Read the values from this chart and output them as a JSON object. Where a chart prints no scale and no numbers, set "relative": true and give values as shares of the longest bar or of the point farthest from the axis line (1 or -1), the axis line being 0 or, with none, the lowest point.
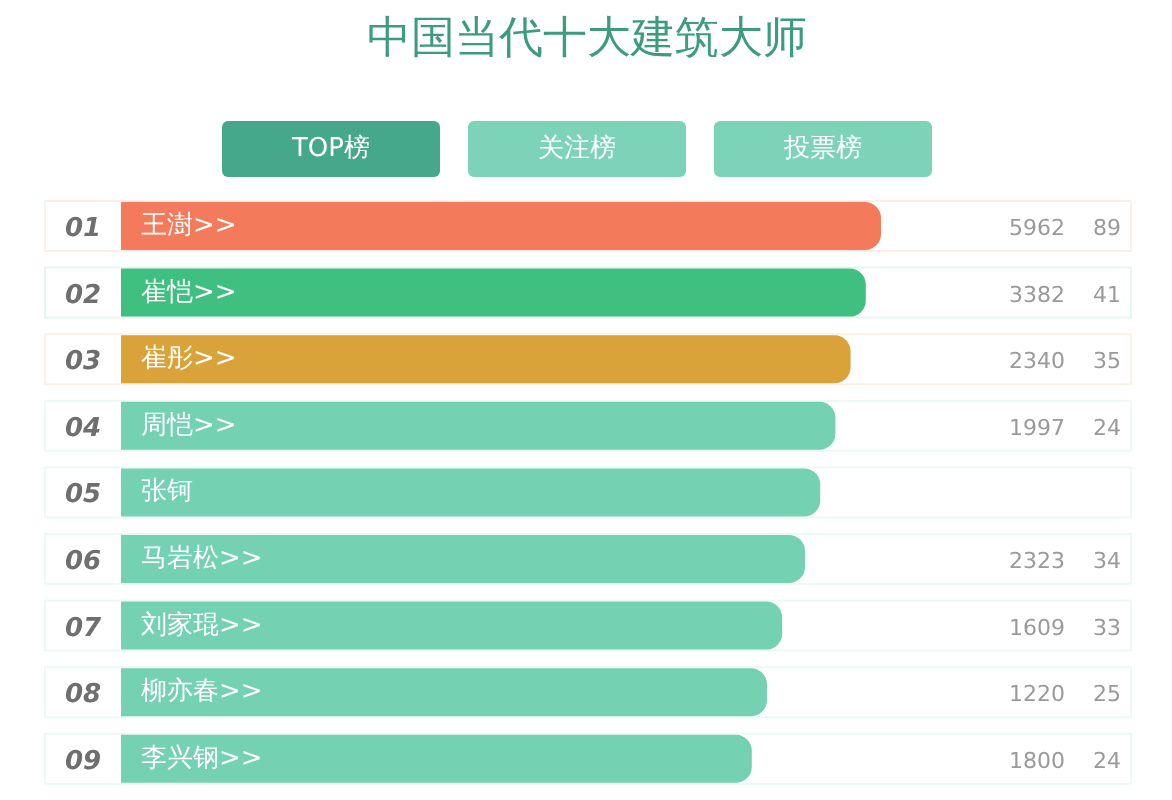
{
  "chart_data": {
    "type": "bar",
    "orientation": "horizontal",
    "relative": true,
    "title": "中国当代十大建筑大师",
    "categories": [
      "王澍>>",
      "崔恺>>",
      "崔彤>>",
      "周恺>>",
      "张钶",
      "马岩松>>",
      "刘家琨>>",
      "柳亦春>>",
      "李兴钢>>"
    ],
    "values": [
      1,
      0.98,
      0.96,
      0.94,
      0.92,
      0.9,
      0.87,
      0.85,
      0.83
    ],
    "colors": [
      "#f47a5c",
      "#3fbf80",
      "#d9a33a",
      "#74d1b1",
      "#74d1b1",
      "#74d1b1",
      "#74d1b1",
      "#74d1b1",
      "#74d1b1"
    ],
    "annotations": [
      "TOP榜",
      "关注榜",
      "投票榜",
      "01",
      "5962",
      "89",
      "02",
      "3382",
      "41",
      "03",
      "2340",
      "35",
      "04",
      "1997",
      "24",
      "05",
      "06",
      "2323",
      "34",
      "07",
      "1609",
      "33",
      "08",
      "1220",
      "25",
      "09",
      "1800",
      "24"
    ]
  }
}
